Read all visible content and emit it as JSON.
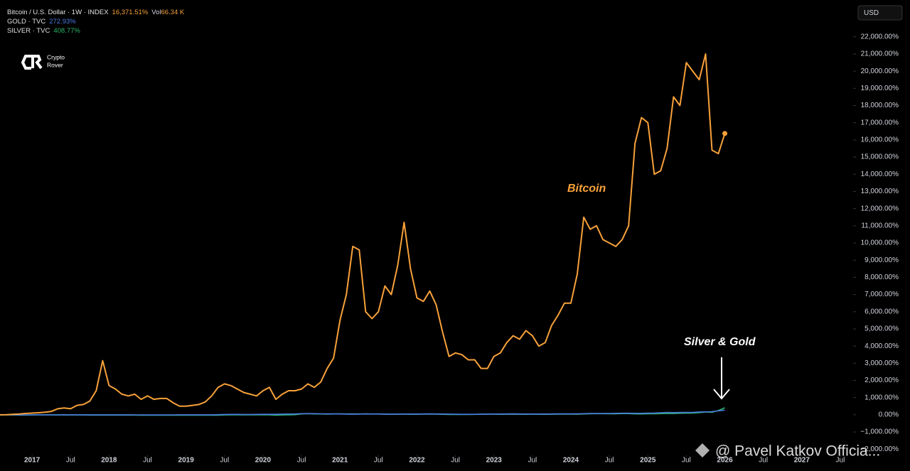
{
  "chart_data": {
    "type": "line",
    "x": [
      "2016-08",
      "2016-09",
      "2016-10",
      "2016-11",
      "2016-12",
      "2017-01",
      "2017-02",
      "2017-03",
      "2017-04",
      "2017-05",
      "2017-06",
      "2017-07",
      "2017-08",
      "2017-09",
      "2017-10",
      "2017-11",
      "2017-12",
      "2018-01",
      "2018-02",
      "2018-03",
      "2018-04",
      "2018-05",
      "2018-06",
      "2018-07",
      "2018-08",
      "2018-09",
      "2018-10",
      "2018-11",
      "2018-12",
      "2019-01",
      "2019-02",
      "2019-03",
      "2019-04",
      "2019-05",
      "2019-06",
      "2019-07",
      "2019-08",
      "2019-09",
      "2019-10",
      "2019-11",
      "2019-12",
      "2020-01",
      "2020-02",
      "2020-03",
      "2020-04",
      "2020-05",
      "2020-06",
      "2020-07",
      "2020-08",
      "2020-09",
      "2020-10",
      "2020-11",
      "2020-12",
      "2021-01",
      "2021-02",
      "2021-03",
      "2021-04",
      "2021-05",
      "2021-06",
      "2021-07",
      "2021-08",
      "2021-09",
      "2021-10",
      "2021-11",
      "2021-12",
      "2022-01",
      "2022-02",
      "2022-03",
      "2022-04",
      "2022-05",
      "2022-06",
      "2022-07",
      "2022-08",
      "2022-09",
      "2022-10",
      "2022-11",
      "2022-12",
      "2023-01",
      "2023-02",
      "2023-03",
      "2023-04",
      "2023-05",
      "2023-06",
      "2023-07",
      "2023-08",
      "2023-09",
      "2023-10",
      "2023-11",
      "2023-12",
      "2024-01",
      "2024-02",
      "2024-03",
      "2024-04",
      "2024-05",
      "2024-06",
      "2024-07",
      "2024-08",
      "2024-09",
      "2024-10",
      "2024-11",
      "2024-12",
      "2025-01",
      "2025-02",
      "2025-03",
      "2025-04",
      "2025-05",
      "2025-06",
      "2025-07",
      "2025-08",
      "2025-09",
      "2025-10",
      "2025-11",
      "2025-12",
      "2026-01"
    ],
    "series": [
      {
        "name": "Bitcoin / U.S. Dollar · 1W · INDEX",
        "color": "#f7a13a",
        "last_value_label": "16,371.51%",
        "values": [
          0,
          10,
          30,
          50,
          80,
          100,
          120,
          150,
          200,
          350,
          400,
          350,
          550,
          600,
          800,
          1400,
          3150,
          1700,
          1500,
          1200,
          1100,
          1200,
          900,
          1100,
          900,
          950,
          950,
          700,
          500,
          500,
          550,
          600,
          750,
          1100,
          1600,
          1800,
          1700,
          1500,
          1300,
          1200,
          1100,
          1400,
          1600,
          900,
          1200,
          1400,
          1400,
          1500,
          1800,
          1600,
          1900,
          2700,
          3300,
          5500,
          7000,
          9800,
          9600,
          6000,
          5600,
          6000,
          7500,
          7000,
          8700,
          11200,
          8500,
          6800,
          6600,
          7200,
          6400,
          4800,
          3400,
          3600,
          3500,
          3200,
          3200,
          2700,
          2700,
          3400,
          3600,
          4200,
          4600,
          4400,
          4900,
          4600,
          4000,
          4200,
          5200,
          5800,
          6500,
          6500,
          8200,
          11500,
          10800,
          11000,
          10200,
          10000,
          9800,
          10200,
          11000,
          15800,
          17300,
          17000,
          14000,
          14200,
          15500,
          18500,
          18000,
          20500,
          20000,
          19500,
          21000,
          15400,
          15200,
          16371.51
        ]
      },
      {
        "name": "GOLD · TVC",
        "color": "#4a7be0",
        "last_value_label": "272.93%",
        "values": [
          0,
          0,
          -5,
          -10,
          -10,
          -5,
          0,
          0,
          0,
          0,
          0,
          0,
          0,
          0,
          0,
          0,
          0,
          0,
          0,
          0,
          0,
          -5,
          -5,
          -10,
          -10,
          -10,
          -5,
          -5,
          0,
          0,
          0,
          0,
          0,
          0,
          10,
          20,
          25,
          25,
          20,
          20,
          25,
          30,
          30,
          30,
          40,
          45,
          50,
          65,
          70,
          65,
          60,
          55,
          55,
          50,
          40,
          35,
          40,
          45,
          45,
          45,
          40,
          35,
          40,
          40,
          40,
          45,
          50,
          55,
          50,
          45,
          40,
          35,
          30,
          30,
          30,
          35,
          40,
          45,
          45,
          50,
          55,
          50,
          45,
          45,
          45,
          45,
          50,
          55,
          60,
          55,
          55,
          65,
          75,
          75,
          75,
          80,
          85,
          90,
          90,
          85,
          85,
          95,
          105,
          120,
          140,
          130,
          135,
          135,
          140,
          165,
          175,
          180,
          230,
          272.93
        ]
      },
      {
        "name": "SILVER · TVC",
        "color": "#2bb56b",
        "last_value_label": "408.77%",
        "values": [
          0,
          0,
          -10,
          -15,
          -15,
          -10,
          -5,
          -5,
          -5,
          -10,
          -10,
          -10,
          -10,
          -10,
          -15,
          -15,
          -15,
          -15,
          -15,
          -15,
          -15,
          -15,
          -20,
          -20,
          -25,
          -25,
          -25,
          -25,
          -20,
          -20,
          -20,
          -20,
          -20,
          -25,
          -20,
          -10,
          0,
          5,
          0,
          0,
          0,
          0,
          0,
          -20,
          -10,
          0,
          10,
          50,
          70,
          50,
          50,
          40,
          50,
          60,
          50,
          50,
          50,
          60,
          50,
          50,
          40,
          30,
          40,
          40,
          30,
          35,
          40,
          45,
          40,
          30,
          20,
          20,
          15,
          20,
          25,
          35,
          40,
          40,
          30,
          35,
          40,
          35,
          30,
          40,
          35,
          30,
          35,
          40,
          45,
          40,
          35,
          50,
          60,
          70,
          65,
          60,
          60,
          70,
          70,
          55,
          50,
          60,
          60,
          70,
          75,
          75,
          90,
          95,
          100,
          130,
          160,
          150,
          250,
          408.77
        ]
      }
    ],
    "volume_label": "Vol",
    "volume_value": "66.34 K",
    "currency_button": "USD",
    "annotations": [
      "Bitcoin",
      "Silver & Gold"
    ],
    "watermark": [
      "Crypto",
      "Rover"
    ],
    "credit": "@ Pavel Katkov Officia...",
    "xlim": [
      "2016-08",
      "2027-09"
    ],
    "xticks": [
      {
        "value": "2017-01",
        "label": "2017"
      },
      {
        "value": "2017-07",
        "label": "Jul"
      },
      {
        "value": "2018-01",
        "label": "2018"
      },
      {
        "value": "2018-07",
        "label": "Jul"
      },
      {
        "value": "2019-01",
        "label": "2019"
      },
      {
        "value": "2019-07",
        "label": "Jul"
      },
      {
        "value": "2020-01",
        "label": "2020"
      },
      {
        "value": "2020-07",
        "label": "Jul"
      },
      {
        "value": "2021-01",
        "label": "2021"
      },
      {
        "value": "2021-07",
        "label": "Jul"
      },
      {
        "value": "2022-01",
        "label": "2022"
      },
      {
        "value": "2022-07",
        "label": "Jul"
      },
      {
        "value": "2023-01",
        "label": "2023"
      },
      {
        "value": "2023-07",
        "label": "Jul"
      },
      {
        "value": "2024-01",
        "label": "2024"
      },
      {
        "value": "2024-07",
        "label": "Jul"
      },
      {
        "value": "2025-01",
        "label": "2025"
      },
      {
        "value": "2025-07",
        "label": "Jul"
      },
      {
        "value": "2026-01",
        "label": "2026"
      },
      {
        "value": "2026-07",
        "label": "Jul"
      },
      {
        "value": "2027-01",
        "label": "2027"
      },
      {
        "value": "2027-07",
        "label": "Jul"
      }
    ],
    "ylim": [
      -2650,
      22900
    ],
    "yticks": [
      {
        "value": -2000,
        "label": "−2,000.00%"
      },
      {
        "value": -1000,
        "label": "−1,000.00%"
      },
      {
        "value": 0,
        "label": "0.00%"
      },
      {
        "value": 1000,
        "label": "1,000.00%"
      },
      {
        "value": 2000,
        "label": "2,000.00%"
      },
      {
        "value": 3000,
        "label": "3,000.00%"
      },
      {
        "value": 4000,
        "label": "4,000.00%"
      },
      {
        "value": 5000,
        "label": "5,000.00%"
      },
      {
        "value": 6000,
        "label": "6,000.00%"
      },
      {
        "value": 7000,
        "label": "7,000.00%"
      },
      {
        "value": 8000,
        "label": "8,000.00%"
      },
      {
        "value": 9000,
        "label": "9,000.00%"
      },
      {
        "value": 10000,
        "label": "10,000.00%"
      },
      {
        "value": 11000,
        "label": "11,000.00%"
      },
      {
        "value": 12000,
        "label": "12,000.00%"
      },
      {
        "value": 13000,
        "label": "13,000.00%"
      },
      {
        "value": 14000,
        "label": "14,000.00%"
      },
      {
        "value": 15000,
        "label": "15,000.00%"
      },
      {
        "value": 16000,
        "label": "16,000.00%"
      },
      {
        "value": 17000,
        "label": "17,000.00%"
      },
      {
        "value": 18000,
        "label": "18,000.00%"
      },
      {
        "value": 19000,
        "label": "19,000.00%"
      },
      {
        "value": 20000,
        "label": "20,000.00%"
      },
      {
        "value": 21000,
        "label": "21,000.00%"
      },
      {
        "value": 22000,
        "label": "22,000.00%"
      }
    ],
    "grid": false
  }
}
